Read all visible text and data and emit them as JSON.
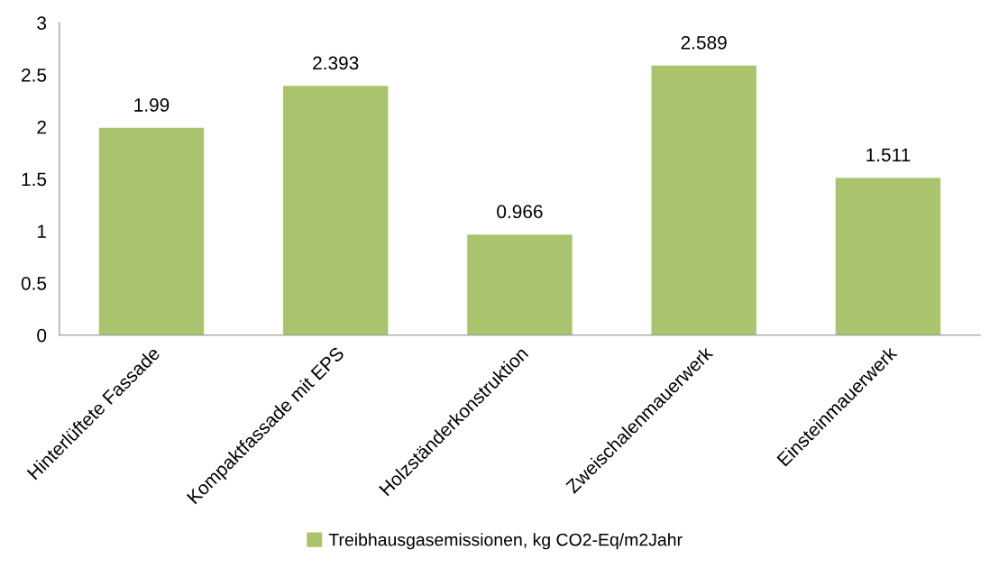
{
  "chart_data": {
    "type": "bar",
    "categories": [
      "Hinterlüftete Fassade",
      "Kompaktfassade mit EPS",
      "Holzständerkonstruktion",
      "Zweischalenmauerwerk",
      "Einsteinmauerwerk"
    ],
    "series": [
      {
        "name": "Treibhausgasemissionen, kg CO2-Eq/m2Jahr",
        "color": "#a9c46c",
        "values": [
          1.99,
          2.393,
          0.966,
          2.589,
          1.511
        ]
      }
    ],
    "ylim": [
      0,
      3
    ],
    "yticks": [
      0,
      0.5,
      1,
      1.5,
      2,
      2.5,
      3
    ],
    "data_labels": true,
    "grid": false,
    "legend": "bottom"
  }
}
